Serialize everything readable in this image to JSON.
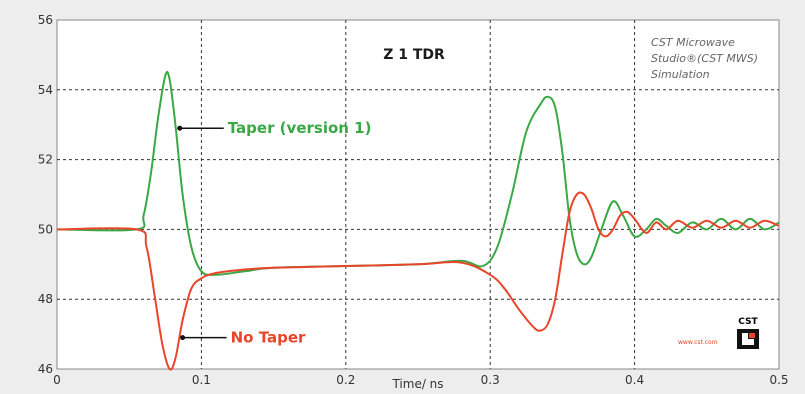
{
  "chart_data": {
    "type": "line",
    "title": "Z 1 TDR",
    "xlabel": "Time/ ns",
    "ylabel": "",
    "xlim": [
      0,
      0.5
    ],
    "ylim": [
      46,
      56
    ],
    "x_ticks": [
      0,
      0.1,
      0.2,
      0.3,
      0.4,
      0.5
    ],
    "x_tick_labels": [
      "0",
      "0.1",
      "0.2",
      "0.3",
      "0.4",
      "0.5"
    ],
    "y_ticks": [
      46,
      48,
      50,
      52,
      54,
      56
    ],
    "y_tick_labels": [
      "46",
      "48",
      "50",
      "52",
      "54",
      "56"
    ],
    "grid": true,
    "series": [
      {
        "name": "Taper (version 1)",
        "color": "#3aa845",
        "x": [
          0,
          0.055,
          0.06,
          0.065,
          0.07,
          0.075,
          0.078,
          0.082,
          0.087,
          0.093,
          0.1,
          0.11,
          0.13,
          0.15,
          0.2,
          0.25,
          0.28,
          0.295,
          0.305,
          0.315,
          0.325,
          0.335,
          0.34,
          0.345,
          0.35,
          0.355,
          0.36,
          0.365,
          0.37,
          0.377,
          0.385,
          0.392,
          0.4,
          0.408,
          0.415,
          0.422,
          0.43,
          0.44,
          0.45,
          0.46,
          0.47,
          0.48,
          0.49,
          0.5
        ],
        "y": [
          50,
          50,
          50.4,
          51.6,
          53.2,
          54.4,
          54.3,
          53.0,
          51.0,
          49.5,
          48.8,
          48.7,
          48.8,
          48.9,
          48.95,
          49.0,
          49.1,
          48.95,
          49.5,
          51.0,
          52.8,
          53.6,
          53.8,
          53.5,
          52.2,
          50.3,
          49.3,
          49.0,
          49.2,
          50.0,
          50.8,
          50.4,
          49.8,
          50.0,
          50.3,
          50.1,
          49.9,
          50.2,
          50.0,
          50.3,
          50.0,
          50.3,
          50.0,
          50.2
        ]
      },
      {
        "name": "No Taper",
        "color": "#e8452b",
        "x": [
          0,
          0.055,
          0.062,
          0.068,
          0.073,
          0.078,
          0.082,
          0.087,
          0.093,
          0.1,
          0.11,
          0.13,
          0.15,
          0.2,
          0.25,
          0.28,
          0.3,
          0.31,
          0.32,
          0.33,
          0.335,
          0.34,
          0.345,
          0.35,
          0.355,
          0.36,
          0.365,
          0.37,
          0.375,
          0.38,
          0.385,
          0.39,
          0.395,
          0.4,
          0.408,
          0.415,
          0.422,
          0.43,
          0.44,
          0.45,
          0.46,
          0.47,
          0.48,
          0.49,
          0.5
        ],
        "y": [
          50,
          50,
          49.5,
          48.0,
          46.7,
          46.0,
          46.3,
          47.4,
          48.3,
          48.6,
          48.75,
          48.85,
          48.9,
          48.95,
          49.0,
          49.05,
          48.7,
          48.3,
          47.7,
          47.2,
          47.1,
          47.3,
          48.0,
          49.3,
          50.5,
          51.0,
          51.0,
          50.6,
          50.0,
          49.8,
          50.0,
          50.4,
          50.5,
          50.3,
          49.9,
          50.2,
          50.0,
          50.25,
          50.05,
          50.25,
          50.05,
          50.25,
          50.05,
          50.25,
          50.1
        ]
      }
    ],
    "annotations": [
      {
        "text": "Taper (version 1)",
        "series": 0,
        "x": 0.085,
        "y": 52.9
      },
      {
        "text": "No Taper",
        "series": 1,
        "x": 0.087,
        "y": 46.9
      }
    ]
  },
  "credit": {
    "lines": [
      "CST Microwave",
      "Studio®(CST MWS)",
      "Simulation"
    ]
  },
  "logo": {
    "text": "CST",
    "url": "www.cst.com"
  }
}
